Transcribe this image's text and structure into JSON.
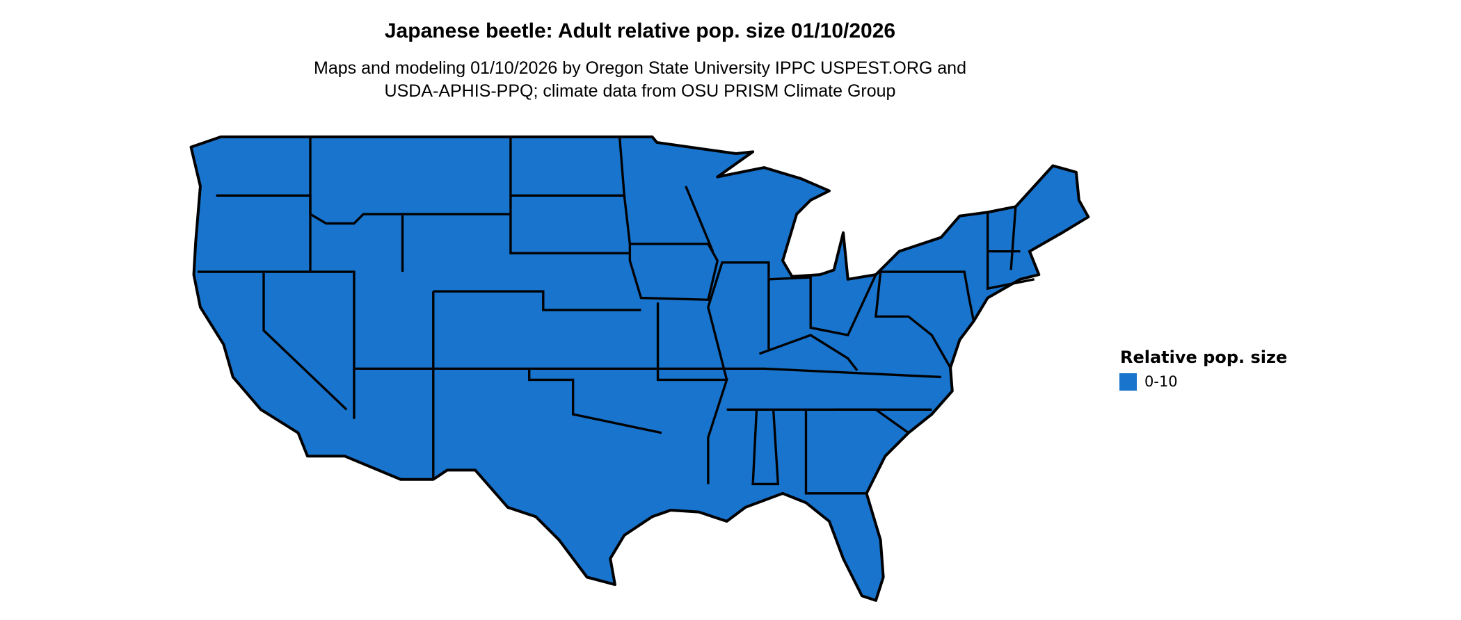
{
  "title": "Japanese beetle: Adult relative pop. size 01/10/2026",
  "subtitle_lines": [
    "Maps and modeling 01/10/2026 by Oregon State University IPPC USPEST.ORG and",
    "USDA-APHIS-PPQ; climate data from OSU PRISM Climate Group"
  ],
  "legend": {
    "title": "Relative pop. size",
    "items": [
      {
        "label": "0-10",
        "color": "#1874CD"
      }
    ]
  },
  "map": {
    "region": "contiguous United States",
    "fill_color": "#1874CD",
    "border_color": "#000000"
  }
}
